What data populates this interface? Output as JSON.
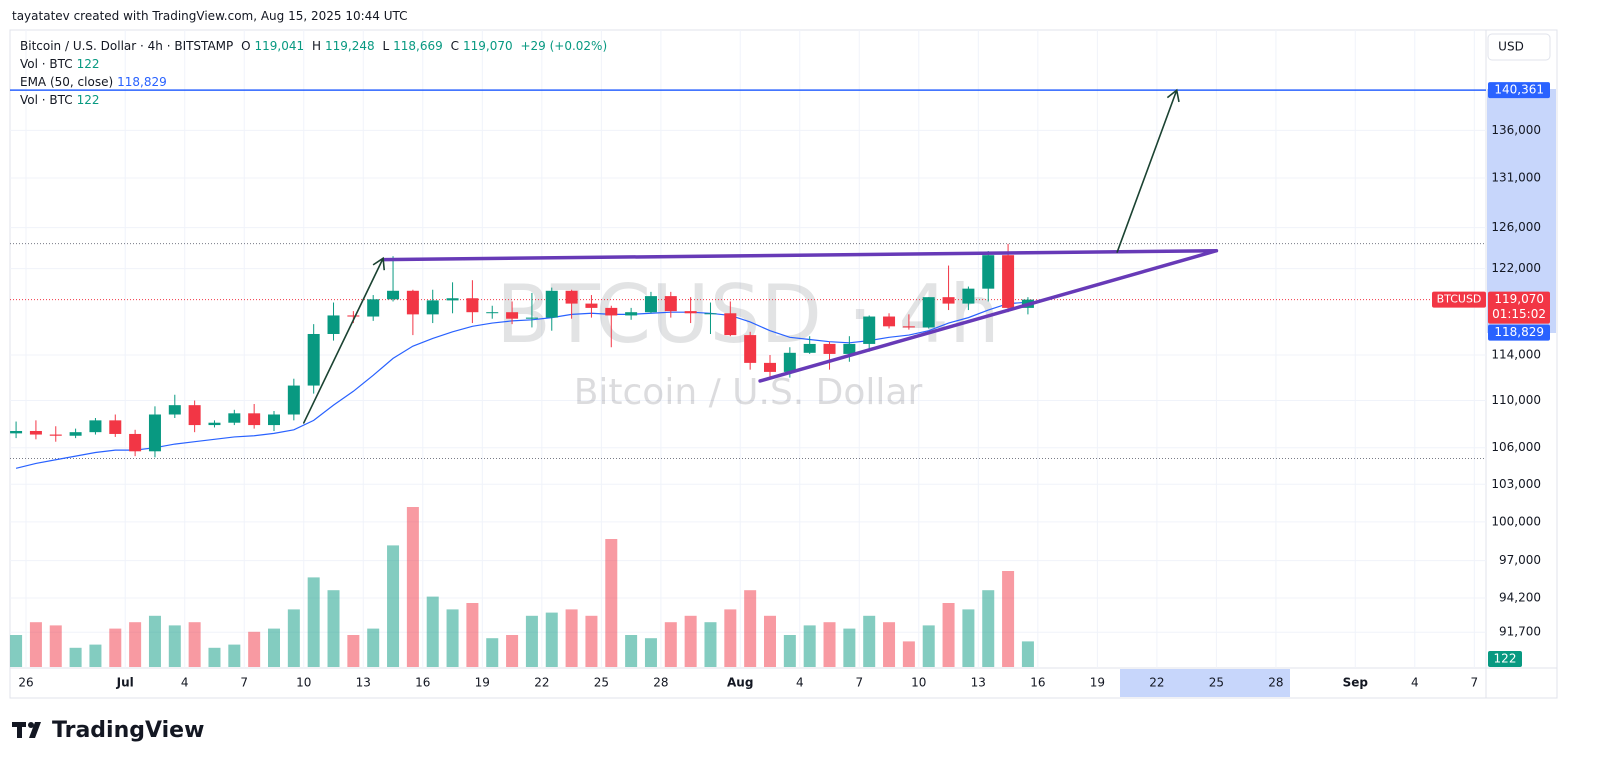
{
  "header": "tayatatev created with TradingView.com, Aug 15, 2025 10:44 UTC",
  "footer": "TradingView",
  "chart_data": {
    "type": "candlestick",
    "title": "Bitcoin / U.S. Dollar · 4h · BITSTAMP",
    "watermark": "BTCUSD · 4h",
    "watermark_subtitle": "Bitcoin / U.S. Dollar",
    "currency": "USD",
    "symbol": "BTCUSD",
    "legend": {
      "open_label": "O",
      "open": {
        "value": 119041,
        "label": "119,041"
      },
      "high_label": "H",
      "high": {
        "value": 119248,
        "label": "119,248"
      },
      "low_label": "L",
      "low": {
        "value": 118669,
        "label": "118,669"
      },
      "close_label": "C",
      "close": {
        "value": 119070,
        "label": "119,070"
      },
      "change": "+29 (+0.02%)"
    },
    "last_price": {
      "value": 119070,
      "label": "119,070"
    },
    "countdown": "01:15:02",
    "up_color": "#089981",
    "down_color": "#f23645",
    "log_scale": true,
    "grid": true,
    "ylim": [
      89160,
      147150
    ],
    "yticks": [
      {
        "value": 91700,
        "label": "91,700"
      },
      {
        "value": 94200,
        "label": "94,200"
      },
      {
        "value": 97000,
        "label": "97,000"
      },
      {
        "value": 100000,
        "label": "100,000"
      },
      {
        "value": 103000,
        "label": "103,000"
      },
      {
        "value": 106000,
        "label": "106,000"
      },
      {
        "value": 110000,
        "label": "110,000"
      },
      {
        "value": 114000,
        "label": "114,000"
      },
      {
        "value": 122000,
        "label": "122,000"
      },
      {
        "value": 126000,
        "label": "126,000"
      },
      {
        "value": 131000,
        "label": "131,000"
      },
      {
        "value": 136000,
        "label": "136,000"
      }
    ],
    "xticks": [
      {
        "value": "2025-06-26",
        "label": "26"
      },
      {
        "value": "2025-07-01",
        "label": "Jul"
      },
      {
        "value": "2025-07-04",
        "label": "4"
      },
      {
        "value": "2025-07-07",
        "label": "7"
      },
      {
        "value": "2025-07-10",
        "label": "10"
      },
      {
        "value": "2025-07-13",
        "label": "13"
      },
      {
        "value": "2025-07-16",
        "label": "16"
      },
      {
        "value": "2025-07-19",
        "label": "19"
      },
      {
        "value": "2025-07-22",
        "label": "22"
      },
      {
        "value": "2025-07-25",
        "label": "25"
      },
      {
        "value": "2025-07-28",
        "label": "28"
      },
      {
        "value": "2025-08-01",
        "label": "Aug"
      },
      {
        "value": "2025-08-04",
        "label": "4"
      },
      {
        "value": "2025-08-07",
        "label": "7"
      },
      {
        "value": "2025-08-10",
        "label": "10"
      },
      {
        "value": "2025-08-13",
        "label": "13"
      },
      {
        "value": "2025-08-16",
        "label": "16"
      },
      {
        "value": "2025-08-19",
        "label": "19"
      },
      {
        "value": "2025-08-22",
        "label": "22"
      },
      {
        "value": "2025-08-25",
        "label": "25"
      },
      {
        "value": "2025-08-28",
        "label": "28"
      },
      {
        "value": "2025-09-01",
        "label": "Sep"
      },
      {
        "value": "2025-09-04",
        "label": "4"
      },
      {
        "value": "2025-09-07",
        "label": "7"
      }
    ],
    "x": [
      "2025-06-25",
      "2025-06-26",
      "2025-06-27",
      "2025-06-28",
      "2025-06-29",
      "2025-06-30",
      "2025-07-01",
      "2025-07-02",
      "2025-07-03",
      "2025-07-04",
      "2025-07-05",
      "2025-07-06",
      "2025-07-07",
      "2025-07-08",
      "2025-07-09",
      "2025-07-10",
      "2025-07-11",
      "2025-07-12",
      "2025-07-13",
      "2025-07-14",
      "2025-07-15",
      "2025-07-16",
      "2025-07-17",
      "2025-07-18",
      "2025-07-19",
      "2025-07-20",
      "2025-07-21",
      "2025-07-22",
      "2025-07-23",
      "2025-07-24",
      "2025-07-25",
      "2025-07-26",
      "2025-07-27",
      "2025-07-28",
      "2025-07-29",
      "2025-07-30",
      "2025-07-31",
      "2025-08-01",
      "2025-08-02",
      "2025-08-03",
      "2025-08-04",
      "2025-08-05",
      "2025-08-06",
      "2025-08-07",
      "2025-08-08",
      "2025-08-09",
      "2025-08-10",
      "2025-08-11",
      "2025-08-12",
      "2025-08-13",
      "2025-08-14",
      "2025-08-15"
    ],
    "open": [
      107200,
      107400,
      107100,
      107000,
      107300,
      108300,
      107150,
      105700,
      108800,
      109600,
      107900,
      108100,
      108900,
      107900,
      108800,
      111300,
      115900,
      117600,
      117500,
      119100,
      119900,
      117700,
      119000,
      119200,
      117900,
      117900,
      117300,
      117400,
      119900,
      118700,
      118300,
      117600,
      117900,
      119400,
      118000,
      117800,
      117800,
      115800,
      113300,
      112500,
      114200,
      115000,
      114100,
      115000,
      117500,
      116600,
      116500,
      119300,
      118700,
      120100,
      123300,
      118300
    ],
    "high": [
      108200,
      108300,
      107800,
      107600,
      108500,
      108800,
      107500,
      109500,
      110500,
      110000,
      108300,
      109200,
      109700,
      109100,
      111900,
      116800,
      118800,
      118000,
      119500,
      123200,
      120000,
      120000,
      120700,
      120900,
      118500,
      118900,
      119700,
      120200,
      120000,
      119500,
      118500,
      118300,
      119800,
      119800,
      119300,
      118800,
      118900,
      116100,
      114000,
      114700,
      115700,
      115200,
      115700,
      117600,
      117800,
      117700,
      119300,
      122300,
      120300,
      123700,
      124400,
      119300
    ],
    "low": [
      106800,
      106700,
      106500,
      106800,
      107100,
      106900,
      105300,
      105200,
      108500,
      107300,
      107700,
      107900,
      107600,
      107400,
      108300,
      110600,
      115300,
      116900,
      117100,
      118900,
      115800,
      116900,
      117800,
      116900,
      117300,
      116800,
      116500,
      116200,
      117300,
      117400,
      114700,
      117200,
      117800,
      117400,
      116900,
      115900,
      115700,
      112700,
      112000,
      112000,
      114100,
      112700,
      113400,
      114300,
      116400,
      116300,
      116400,
      118100,
      118100,
      118900,
      117900,
      117700
    ],
    "close": [
      107400,
      107100,
      107000,
      107300,
      108300,
      107150,
      105700,
      108800,
      109600,
      107900,
      108100,
      108900,
      107900,
      108800,
      111300,
      115900,
      117600,
      117500,
      119100,
      119900,
      117700,
      119000,
      119200,
      117900,
      117900,
      117300,
      117400,
      119900,
      118700,
      118300,
      117600,
      117900,
      119400,
      118000,
      117800,
      117800,
      115800,
      113300,
      112500,
      114200,
      115000,
      114100,
      115000,
      117500,
      116600,
      116500,
      119300,
      118700,
      120100,
      123300,
      118300,
      119070
    ],
    "volume": {
      "name": "Vol · BTC",
      "last": 122,
      "values": [
        500,
        700,
        650,
        300,
        350,
        600,
        700,
        800,
        650,
        700,
        300,
        350,
        550,
        600,
        900,
        1400,
        1200,
        500,
        600,
        1900,
        2500,
        1100,
        900,
        1000,
        450,
        500,
        800,
        850,
        900,
        800,
        2000,
        500,
        450,
        700,
        800,
        700,
        900,
        1200,
        800,
        500,
        650,
        700,
        600,
        800,
        700,
        400,
        650,
        1000,
        900,
        1200,
        1500,
        400
      ]
    },
    "ema": {
      "name": "EMA (50, close)",
      "color": "#2962ff",
      "last": {
        "value": 118829,
        "label": "118,829"
      },
      "values": [
        104300,
        104700,
        105000,
        105300,
        105600,
        105800,
        105800,
        106000,
        106300,
        106500,
        106700,
        106900,
        107000,
        107200,
        107500,
        108300,
        109600,
        110800,
        112200,
        113700,
        114800,
        115500,
        116100,
        116600,
        116900,
        117100,
        117200,
        117400,
        117700,
        117800,
        117700,
        117700,
        117800,
        117900,
        117900,
        117800,
        117600,
        117000,
        116200,
        115600,
        115400,
        115200,
        115100,
        115300,
        115600,
        115800,
        116200,
        116900,
        117400,
        118100,
        118700,
        118829
      ]
    },
    "target_line": {
      "value": 140361,
      "label": "140,361",
      "color": "#2962ff"
    },
    "dotted_levels": [
      124420,
      105100
    ],
    "drawings": [
      {
        "kind": "trendline",
        "color": "#673ab7",
        "points": [
          {
            "x": "2025-07-14",
            "y": 122870
          },
          {
            "x": "2025-08-25",
            "y": 123730
          }
        ]
      },
      {
        "kind": "trendline",
        "color": "#673ab7",
        "points": [
          {
            "x": "2025-08-02",
            "y": 111700
          },
          {
            "x": "2025-08-25",
            "y": 123730
          }
        ]
      },
      {
        "kind": "arrow",
        "color": "#1b4332",
        "points": [
          {
            "x": "2025-07-10",
            "y": 108080
          },
          {
            "x": "2025-07-14",
            "y": 123000
          }
        ]
      },
      {
        "kind": "arrow",
        "color": "#1b4332",
        "points": [
          {
            "x": "2025-08-20",
            "y": 123600
          },
          {
            "x": "2025-08-23",
            "y": 140361
          }
        ]
      }
    ]
  }
}
